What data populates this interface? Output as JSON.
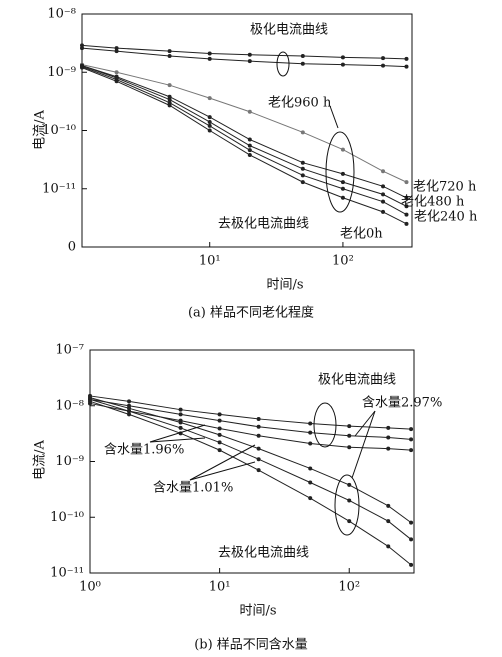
{
  "chart_data": [
    {
      "type": "line",
      "title": "(a) 样品不同老化程度",
      "x_label": "时间/s",
      "y_label": "电流/A",
      "x_scale": "log",
      "y_scale": "log",
      "xlim": [
        1.1,
        330
      ],
      "xticks": [
        {
          "value": 10,
          "label": "10¹"
        },
        {
          "value": 100,
          "label": "10²"
        }
      ],
      "ylim": [
        1e-12,
        1e-08
      ],
      "yticks": [
        {
          "value": 1e-12,
          "label": "0"
        },
        {
          "value": 1e-11,
          "label": "10⁻¹¹"
        },
        {
          "value": 1e-10,
          "label": "10⁻¹⁰"
        },
        {
          "value": 1e-09,
          "label": "10⁻⁹"
        },
        {
          "value": 1e-08,
          "label": "10⁻⁸"
        }
      ],
      "annotations": [
        "极化电流曲线",
        "老化960 h",
        "老化720 h",
        "老化480 h",
        "老化240 h",
        "老化0h",
        "去极化电流曲线"
      ],
      "x": [
        1.1,
        2,
        5,
        10,
        20,
        50,
        100,
        200,
        300
      ],
      "series": [
        {
          "color": "#222222",
          "values": [
            2.9e-09,
            2.6e-09,
            2.3e-09,
            2.1e-09,
            2e-09,
            1.9e-09,
            1.8e-09,
            1.75e-09,
            1.7e-09
          ]
        },
        {
          "color": "#222222",
          "values": [
            2.6e-09,
            2.3e-09,
            1.9e-09,
            1.7e-09,
            1.55e-09,
            1.4e-09,
            1.35e-09,
            1.3e-09,
            1.25e-09
          ]
        },
        {
          "color": "#777777",
          "values": [
            1.35e-09,
            1e-09,
            6e-10,
            3.6e-10,
            2.1e-10,
            9.3e-11,
            4.7e-11,
            2e-11,
            1.3e-11
          ]
        },
        {
          "color": "#222222",
          "values": [
            1.3e-09,
            8.4e-10,
            3.8e-10,
            1.7e-10,
            7e-11,
            2.8e-11,
            1.8e-11,
            1.1e-11,
            7e-12
          ]
        },
        {
          "color": "#222222",
          "values": [
            1.3e-09,
            8e-10,
            3.4e-10,
            1.4e-10,
            5.5e-11,
            2.2e-11,
            1.3e-11,
            8e-12,
            5e-12
          ]
        },
        {
          "color": "#222222",
          "values": [
            1.25e-09,
            7.5e-10,
            3e-10,
            1.2e-10,
            4.6e-11,
            1.7e-11,
            1e-11,
            6e-12,
            3.6e-12
          ]
        },
        {
          "color": "#222222",
          "values": [
            1.2e-09,
            7e-10,
            2.7e-10,
            1e-10,
            3.8e-11,
            1.3e-11,
            7e-12,
            4e-12,
            2.5e-12
          ]
        }
      ]
    },
    {
      "type": "line",
      "title": "(b) 样品不同含水量",
      "x_label": "时间/s",
      "y_label": "电流/A",
      "x_scale": "log",
      "y_scale": "log",
      "xlim": [
        1,
        316
      ],
      "xticks": [
        {
          "value": 1,
          "label": "10⁰"
        },
        {
          "value": 10,
          "label": "10¹"
        },
        {
          "value": 100,
          "label": "10²"
        }
      ],
      "ylim": [
        1e-11,
        1e-07
      ],
      "yticks": [
        {
          "value": 1e-11,
          "label": "10⁻¹¹"
        },
        {
          "value": 1e-10,
          "label": "10⁻¹⁰"
        },
        {
          "value": 1e-09,
          "label": "10⁻⁹"
        },
        {
          "value": 1e-08,
          "label": "10⁻⁸"
        },
        {
          "value": 1e-07,
          "label": "10⁻⁷"
        }
      ],
      "annotations": [
        "极化电流曲线",
        "含水量2.97%",
        "含水量1.96%",
        "含水量1.01%",
        "去极化电流曲线"
      ],
      "x": [
        1,
        2,
        5,
        10,
        20,
        50,
        100,
        200,
        300
      ],
      "series": [
        {
          "color": "#222222",
          "values": [
            1.5e-08,
            1.2e-08,
            8.5e-09,
            7e-09,
            5.8e-09,
            4.8e-09,
            4.3e-09,
            4e-09,
            3.8e-09
          ]
        },
        {
          "color": "#222222",
          "values": [
            1.3e-08,
            1e-08,
            7e-09,
            5.4e-09,
            4.2e-09,
            3.3e-09,
            2.9e-09,
            2.7e-09,
            2.5e-09
          ]
        },
        {
          "color": "#222222",
          "values": [
            1.1e-08,
            8e-09,
            5.4e-09,
            3.9e-09,
            2.9e-09,
            2.1e-09,
            1.8e-09,
            1.7e-09,
            1.6e-09
          ]
        },
        {
          "color": "#222222",
          "values": [
            1.4e-08,
            9e-09,
            5e-09,
            3e-09,
            1.7e-09,
            7.5e-10,
            3.8e-10,
            1.6e-10,
            8e-11
          ]
        },
        {
          "color": "#222222",
          "values": [
            1.3e-08,
            8e-09,
            4e-09,
            2.2e-09,
            1.1e-09,
            4.2e-10,
            2e-10,
            8.5e-11,
            4e-11
          ]
        },
        {
          "color": "#222222",
          "values": [
            1.2e-08,
            7e-09,
            3.2e-09,
            1.6e-09,
            7e-10,
            2.2e-10,
            8.5e-11,
            3e-11,
            1.4e-11
          ]
        }
      ]
    }
  ]
}
